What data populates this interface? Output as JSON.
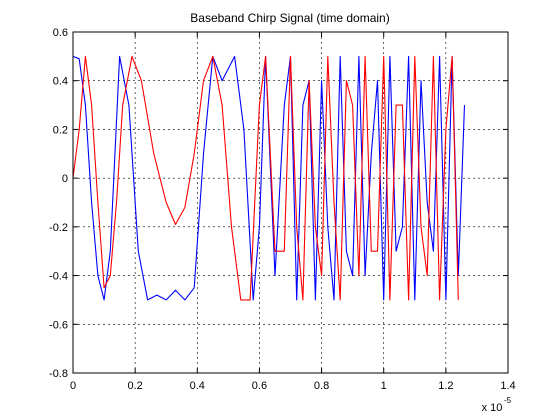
{
  "chart_data": {
    "type": "line",
    "title": "Baseband Chirp Signal (time domain)",
    "xlabel": "",
    "ylabel": "",
    "x_exponent_base": "x 10",
    "x_exponent_power": "-5",
    "xlim": [
      0,
      1.4
    ],
    "ylim": [
      -0.8,
      0.6
    ],
    "xticks": [
      0,
      0.2,
      0.4,
      0.6,
      0.8,
      1,
      1.2,
      1.4
    ],
    "yticks": [
      -0.8,
      -0.6,
      -0.4,
      -0.2,
      0,
      0.2,
      0.4,
      0.6
    ],
    "xtick_labels": [
      "0",
      "0.2",
      "0.4",
      "0.6",
      "0.8",
      "1",
      "1.2",
      "1.4"
    ],
    "ytick_labels": [
      "-0.8",
      "-0.6",
      "-0.4",
      "-0.2",
      "0",
      "0.2",
      "0.4",
      "0.6"
    ],
    "grid": true,
    "grid_style": "dotted",
    "legend": "none",
    "series": [
      {
        "color": "#0000ff",
        "x": [
          0,
          0.02,
          0.04,
          0.06,
          0.08,
          0.1,
          0.12,
          0.15,
          0.18,
          0.21,
          0.24,
          0.27,
          0.3,
          0.33,
          0.36,
          0.39,
          0.42,
          0.45,
          0.48,
          0.52,
          0.55,
          0.58,
          0.6,
          0.62,
          0.65,
          0.68,
          0.7,
          0.72,
          0.74,
          0.76,
          0.78,
          0.8,
          0.82,
          0.84,
          0.86,
          0.88,
          0.9,
          0.92,
          0.94,
          0.96,
          0.98,
          1.0,
          1.02,
          1.04,
          1.06,
          1.08,
          1.1,
          1.12,
          1.14,
          1.16,
          1.18,
          1.2,
          1.22,
          1.24,
          1.26
        ],
        "y": [
          0.5,
          0.49,
          0.3,
          -0.1,
          -0.4,
          -0.5,
          -0.3,
          0.5,
          0.3,
          -0.3,
          -0.5,
          -0.48,
          -0.5,
          -0.46,
          -0.5,
          -0.45,
          0.1,
          0.5,
          0.4,
          0.5,
          0.2,
          -0.5,
          -0.2,
          0.5,
          -0.4,
          0.3,
          0.5,
          -0.5,
          0.3,
          0.4,
          -0.5,
          0.4,
          -0.2,
          -0.5,
          0.5,
          -0.3,
          -0.4,
          0.5,
          -0.4,
          0.1,
          0.4,
          -0.5,
          0.5,
          -0.3,
          -0.2,
          0.5,
          -0.5,
          0.4,
          -0.1,
          -0.3,
          0.5,
          -0.5,
          0.5,
          -0.4,
          0.3
        ]
      },
      {
        "color": "#ff0000",
        "x": [
          0,
          0.02,
          0.04,
          0.06,
          0.08,
          0.1,
          0.12,
          0.14,
          0.16,
          0.19,
          0.22,
          0.26,
          0.3,
          0.33,
          0.36,
          0.39,
          0.42,
          0.45,
          0.48,
          0.51,
          0.54,
          0.57,
          0.6,
          0.62,
          0.65,
          0.68,
          0.7,
          0.72,
          0.74,
          0.76,
          0.78,
          0.8,
          0.82,
          0.84,
          0.86,
          0.88,
          0.9,
          0.92,
          0.94,
          0.96,
          0.98,
          1.0,
          1.02,
          1.04,
          1.06,
          1.08,
          1.1,
          1.12,
          1.14,
          1.16,
          1.18,
          1.2,
          1.22,
          1.24
        ],
        "y": [
          0,
          0.2,
          0.5,
          0.3,
          -0.1,
          -0.45,
          -0.4,
          -0.1,
          0.3,
          0.5,
          0.4,
          0.1,
          -0.1,
          -0.19,
          -0.12,
          0.1,
          0.4,
          0.5,
          0.3,
          -0.2,
          -0.5,
          -0.5,
          0.3,
          0.5,
          -0.3,
          -0.3,
          0.5,
          -0.2,
          -0.5,
          0.4,
          -0.2,
          -0.4,
          0.5,
          -0.1,
          -0.5,
          0.4,
          0.3,
          -0.4,
          0.5,
          -0.3,
          -0.3,
          0.5,
          -0.5,
          0.3,
          0.3,
          -0.5,
          0.5,
          -0.2,
          -0.4,
          0.5,
          -0.5,
          0.2,
          0.5,
          -0.5
        ]
      }
    ]
  }
}
